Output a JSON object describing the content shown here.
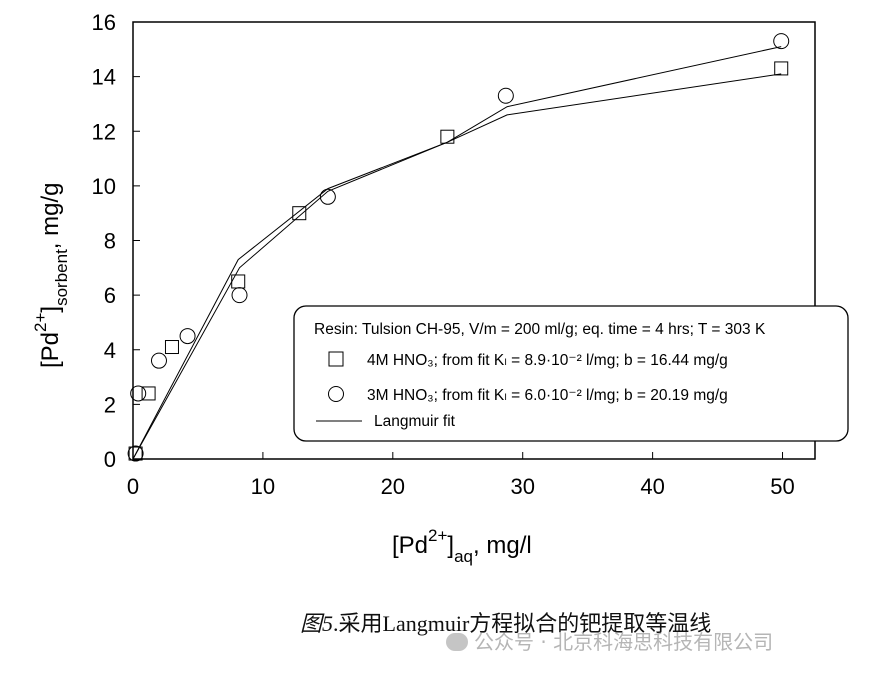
{
  "chart_data": {
    "type": "scatter",
    "xlabel_main": "[Pd",
    "xlabel_sup": "2+",
    "xlabel_close": "]",
    "xlabel_sub": "aq",
    "xlabel_tail": ", mg/l",
    "ylabel_main": "[Pd",
    "ylabel_sup": "2+",
    "ylabel_close": "]",
    "ylabel_sub": "sorbent",
    "ylabel_tail": ",  mg/g",
    "xlim": [
      0,
      52.5
    ],
    "ylim": [
      0,
      16
    ],
    "x_ticks": [
      0,
      10,
      20,
      30,
      40,
      50
    ],
    "y_ticks": [
      0,
      2,
      4,
      6,
      8,
      10,
      12,
      14,
      16
    ],
    "grid": false,
    "legend_position": "bottom-right",
    "legend": {
      "header": "Resin: Tulsion CH-95, V/m = 200 ml/g;  eq. time = 4 hrs;  T = 303 K",
      "entries": [
        {
          "marker": "square",
          "text": "4M HNO₃;    from fit Kₗ  = 8.9·10⁻²  l/mg; b = 16.44 mg/g"
        },
        {
          "marker": "circle",
          "text": "3M HNO₃;    from fit Kₗ  = 6.0·10⁻²  l/mg; b = 20.19 mg/g"
        },
        {
          "marker": "line",
          "text": "Langmuir fit"
        }
      ]
    },
    "series": [
      {
        "name": "4M HNO3",
        "marker": "square",
        "points": [
          [
            0.2,
            0.2
          ],
          [
            1.2,
            2.4
          ],
          [
            3.0,
            4.1
          ],
          [
            8.1,
            6.5
          ],
          [
            12.8,
            9.0
          ],
          [
            24.2,
            11.8
          ],
          [
            49.9,
            14.3
          ]
        ]
      },
      {
        "name": "3M HNO3",
        "marker": "circle",
        "points": [
          [
            0.2,
            0.2
          ],
          [
            0.4,
            2.4
          ],
          [
            2.0,
            3.6
          ],
          [
            4.2,
            4.5
          ],
          [
            8.2,
            6.0
          ],
          [
            15.0,
            9.6
          ],
          [
            28.7,
            13.3
          ],
          [
            49.9,
            15.3
          ]
        ]
      }
    ],
    "fit_lines": [
      {
        "name": "Langmuir fit 4M",
        "points": [
          [
            0.0,
            0.0
          ],
          [
            8.1,
            7.3
          ],
          [
            15.0,
            9.9
          ],
          [
            24.2,
            11.6
          ],
          [
            28.8,
            12.6
          ],
          [
            49.9,
            14.1
          ]
        ]
      },
      {
        "name": "Langmuir fit 3M",
        "points": [
          [
            0.0,
            0.0
          ],
          [
            8.2,
            7.0
          ],
          [
            15.0,
            9.8
          ],
          [
            24.2,
            11.6
          ],
          [
            28.8,
            12.9
          ],
          [
            49.9,
            15.1
          ]
        ]
      }
    ]
  },
  "caption": {
    "fig": "图5",
    "text": ".采用Langmuir方程拟合的钯提取等温线"
  },
  "watermark": {
    "text": "公众号 · 北京科海思科技有限公司"
  }
}
